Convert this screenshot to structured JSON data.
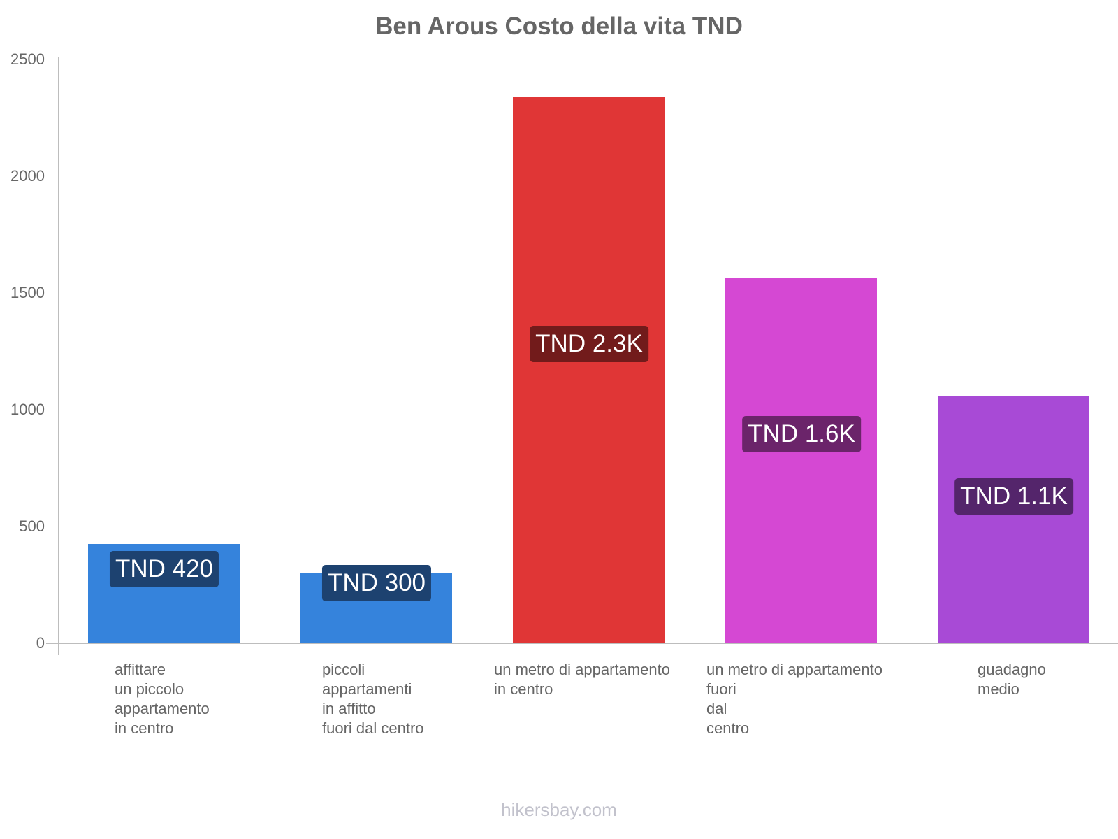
{
  "chart_data": {
    "type": "bar",
    "title": "Ben Arous Costo della vita TND",
    "xlabel": "",
    "ylabel": "",
    "ylim": [
      0,
      2500
    ],
    "yticks": [
      0,
      500,
      1000,
      1500,
      2000,
      2500
    ],
    "grid": false,
    "legend": null,
    "categories": [
      "affittare un piccolo appartamento in centro",
      "piccoli appartamenti in affitto fuori dal centro",
      "un metro di appartamento in centro",
      "un metro di appartamento fuori dal centro",
      "guadagno medio"
    ],
    "values": [
      420,
      300,
      2330,
      1560,
      1050
    ],
    "data_labels": [
      "TND 420",
      "TND 300",
      "TND 2.3K",
      "TND 1.6K",
      "TND 1.1K"
    ],
    "colors": [
      "#3583dc",
      "#3583dc",
      "#e03636",
      "#d548d3",
      "#a84ad6"
    ]
  },
  "title": "Ben Arous Costo della vita TND",
  "y_ticks": [
    "0",
    "500",
    "1000",
    "1500",
    "2000",
    "2500"
  ],
  "bars": [
    {
      "label": "affittare\nun piccolo\nappartamento\nin centro",
      "value_label": "TND 420",
      "color": "#3583dc",
      "label_bg": "#1d4270"
    },
    {
      "label": "piccoli\nappartamenti\nin affitto\nfuori dal centro",
      "value_label": "TND 300",
      "color": "#3583dc",
      "label_bg": "#1d4270"
    },
    {
      "label": "un metro di appartamento\nin centro",
      "value_label": "TND 2.3K",
      "color": "#e03636",
      "label_bg": "#721b1b"
    },
    {
      "label": "un metro di appartamento\nfuori\ndal\ncentro",
      "value_label": "TND 1.6K",
      "color": "#d548d3",
      "label_bg": "#6b246a"
    },
    {
      "label": "guadagno\nmedio",
      "value_label": "TND 1.1K",
      "color": "#a84ad6",
      "label_bg": "#54256b"
    }
  ],
  "footer": "hikersbay.com"
}
